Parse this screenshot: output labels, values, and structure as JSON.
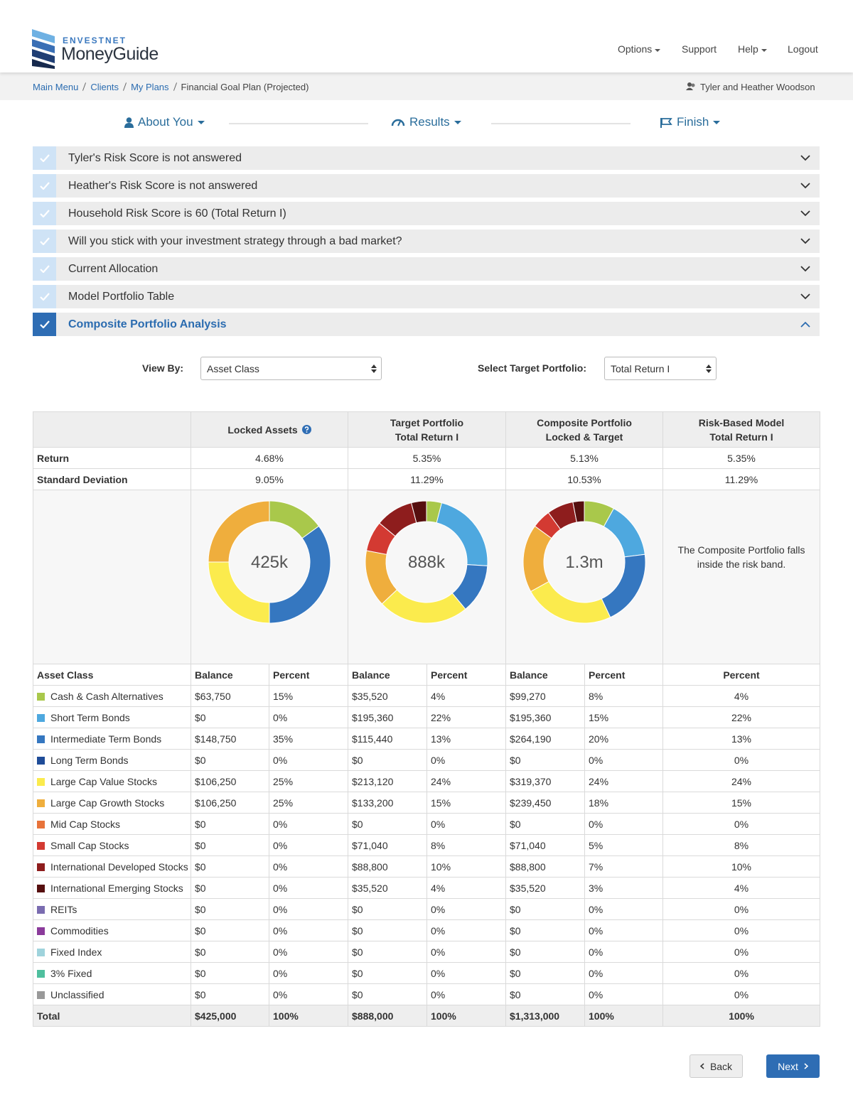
{
  "header": {
    "brand_top": "ENVESTNET",
    "brand": "MoneyGuide",
    "nav": [
      "Options",
      "Support",
      "Help",
      "Logout"
    ]
  },
  "breadcrumb": {
    "items": [
      "Main Menu",
      "Clients",
      "My Plans",
      "Financial Goal Plan (Projected)"
    ],
    "client": "Tyler and Heather Woodson"
  },
  "steps": [
    "About You",
    "Results",
    "Finish"
  ],
  "accordion": [
    "Tyler's Risk Score is not answered",
    "Heather's Risk Score is not answered",
    "Household Risk Score is 60 (Total Return I)",
    "Will you stick with your investment strategy through a bad market?",
    "Current Allocation",
    "Model Portfolio Table",
    "Composite Portfolio Analysis"
  ],
  "controls": {
    "view_by_label": "View By:",
    "view_by_value": "Asset Class",
    "target_label": "Select Target Portfolio:",
    "target_value": "Total Return I"
  },
  "table": {
    "columns": [
      {
        "title": "Locked Assets"
      },
      {
        "title": "Target Portfolio",
        "subtitle": "Total Return I"
      },
      {
        "title": "Composite Portfolio",
        "subtitle": "Locked & Target"
      },
      {
        "title": "Risk-Based Model",
        "subtitle": "Total Return I"
      }
    ],
    "metrics": [
      {
        "label": "Return",
        "values": [
          "4.68%",
          "5.35%",
          "5.13%",
          "5.35%"
        ]
      },
      {
        "label": "Standard Deviation",
        "values": [
          "9.05%",
          "11.29%",
          "10.53%",
          "11.29%"
        ]
      }
    ],
    "donut_centers": [
      "425k",
      "888k",
      "1.3m"
    ],
    "note": "The Composite Portfolio falls inside the risk band.",
    "subheaders": [
      "Asset Class",
      "Balance",
      "Percent",
      "Balance",
      "Percent",
      "Balance",
      "Percent",
      "Percent"
    ],
    "assets": [
      {
        "name": "Cash & Cash Alternatives",
        "color": "#a9c84b",
        "cells": [
          "$63,750",
          "15%",
          "$35,520",
          "4%",
          "$99,270",
          "8%",
          "4%"
        ]
      },
      {
        "name": "Short Term Bonds",
        "color": "#4ea8df",
        "cells": [
          "$0",
          "0%",
          "$195,360",
          "22%",
          "$195,360",
          "15%",
          "22%"
        ]
      },
      {
        "name": "Intermediate Term Bonds",
        "color": "#3577c0",
        "cells": [
          "$148,750",
          "35%",
          "$115,440",
          "13%",
          "$264,190",
          "20%",
          "13%"
        ]
      },
      {
        "name": "Long Term Bonds",
        "color": "#1f4c98",
        "cells": [
          "$0",
          "0%",
          "$0",
          "0%",
          "$0",
          "0%",
          "0%"
        ]
      },
      {
        "name": "Large Cap Value Stocks",
        "color": "#fbeb4d",
        "cells": [
          "$106,250",
          "25%",
          "$213,120",
          "24%",
          "$319,370",
          "24%",
          "24%"
        ]
      },
      {
        "name": "Large Cap Growth Stocks",
        "color": "#efae3d",
        "cells": [
          "$106,250",
          "25%",
          "$133,200",
          "15%",
          "$239,450",
          "18%",
          "15%"
        ]
      },
      {
        "name": "Mid Cap Stocks",
        "color": "#e8733a",
        "cells": [
          "$0",
          "0%",
          "$0",
          "0%",
          "$0",
          "0%",
          "0%"
        ]
      },
      {
        "name": "Small Cap Stocks",
        "color": "#d33a32",
        "cells": [
          "$0",
          "0%",
          "$71,040",
          "8%",
          "$71,040",
          "5%",
          "8%"
        ]
      },
      {
        "name": "International Developed Stocks",
        "color": "#8e1d1d",
        "cells": [
          "$0",
          "0%",
          "$88,800",
          "10%",
          "$88,800",
          "7%",
          "10%"
        ]
      },
      {
        "name": "International Emerging Stocks",
        "color": "#560f0f",
        "cells": [
          "$0",
          "0%",
          "$35,520",
          "4%",
          "$35,520",
          "3%",
          "4%"
        ]
      },
      {
        "name": "REITs",
        "color": "#7a6cb0",
        "cells": [
          "$0",
          "0%",
          "$0",
          "0%",
          "$0",
          "0%",
          "0%"
        ]
      },
      {
        "name": "Commodities",
        "color": "#8b3b9b",
        "cells": [
          "$0",
          "0%",
          "$0",
          "0%",
          "$0",
          "0%",
          "0%"
        ]
      },
      {
        "name": "Fixed Index",
        "color": "#9fd3dc",
        "cells": [
          "$0",
          "0%",
          "$0",
          "0%",
          "$0",
          "0%",
          "0%"
        ]
      },
      {
        "name": "3% Fixed",
        "color": "#4fbf9e",
        "cells": [
          "$0",
          "0%",
          "$0",
          "0%",
          "$0",
          "0%",
          "0%"
        ]
      },
      {
        "name": "Unclassified",
        "color": "#999999",
        "cells": [
          "$0",
          "0%",
          "$0",
          "0%",
          "$0",
          "0%",
          "0%"
        ]
      }
    ],
    "total": {
      "label": "Total",
      "cells": [
        "$425,000",
        "100%",
        "$888,000",
        "100%",
        "$1,313,000",
        "100%",
        "100%"
      ]
    }
  },
  "buttons": {
    "back": "Back",
    "next": "Next"
  }
}
